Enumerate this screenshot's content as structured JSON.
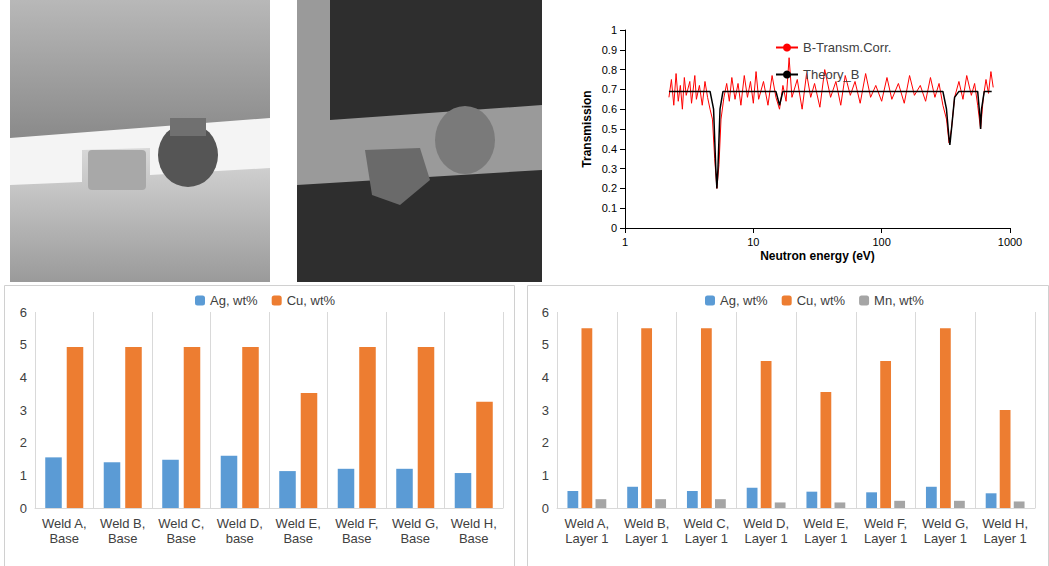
{
  "chart_data": [
    {
      "type": "line",
      "xlabel": "Neutron energy (eV)",
      "ylabel": "Transmission",
      "log": "x",
      "xlim": [
        1,
        1000
      ],
      "xticks": [
        1,
        10,
        100,
        1000
      ],
      "ylim": [
        0,
        1
      ],
      "yticks": [
        0,
        0.1,
        0.2,
        0.3,
        0.4,
        0.5,
        0.6,
        0.7,
        0.8,
        0.9,
        1
      ],
      "grid": false,
      "legend": "upper right",
      "series": [
        {
          "name": "B-Transm.Corr.",
          "color": "#ff0000",
          "line_style": "solid",
          "x": [
            2.2,
            2.3,
            2.4,
            2.5,
            2.6,
            2.7,
            2.8,
            2.9,
            3.0,
            3.2,
            3.3,
            3.5,
            3.6,
            3.8,
            4.0,
            4.2,
            4.4,
            4.6,
            4.8,
            5.0,
            5.2,
            5.4,
            5.6,
            5.9,
            6.2,
            6.5,
            6.8,
            7.2,
            7.6,
            8,
            8.5,
            9,
            9.5,
            10,
            10.5,
            11,
            12,
            13,
            14,
            15,
            16,
            17,
            18,
            19,
            20,
            22,
            24,
            26,
            28,
            30,
            33,
            36,
            40,
            44,
            48,
            52,
            57,
            62,
            68,
            75,
            82,
            90,
            100,
            110,
            120,
            135,
            150,
            165,
            180,
            200,
            220,
            240,
            260,
            280,
            300,
            320,
            335,
            350,
            370,
            400,
            430,
            460,
            500,
            530,
            560,
            590,
            620,
            650,
            680,
            710,
            740
          ],
          "values": [
            0.66,
            0.75,
            0.62,
            0.78,
            0.64,
            0.72,
            0.6,
            0.76,
            0.67,
            0.74,
            0.63,
            0.77,
            0.65,
            0.72,
            0.62,
            0.74,
            0.66,
            0.6,
            0.55,
            0.35,
            0.2,
            0.32,
            0.55,
            0.66,
            0.73,
            0.64,
            0.76,
            0.65,
            0.73,
            0.62,
            0.77,
            0.66,
            0.74,
            0.63,
            0.79,
            0.65,
            0.74,
            0.62,
            0.77,
            0.66,
            0.6,
            0.72,
            0.64,
            0.86,
            0.66,
            0.75,
            0.6,
            0.78,
            0.66,
            0.73,
            0.61,
            0.8,
            0.66,
            0.74,
            0.62,
            0.77,
            0.67,
            0.74,
            0.63,
            0.78,
            0.66,
            0.72,
            0.64,
            0.76,
            0.65,
            0.73,
            0.63,
            0.77,
            0.67,
            0.72,
            0.64,
            0.76,
            0.66,
            0.73,
            0.62,
            0.55,
            0.43,
            0.5,
            0.66,
            0.74,
            0.65,
            0.77,
            0.67,
            0.73,
            0.62,
            0.5,
            0.66,
            0.75,
            0.68,
            0.79,
            0.71
          ]
        },
        {
          "name": "Theory_B",
          "color": "#000000",
          "line_style": "solid",
          "x": [
            2.2,
            4.6,
            4.9,
            5.1,
            5.2,
            5.3,
            5.5,
            5.8,
            15,
            16,
            17,
            300,
            320,
            335,
            340,
            350,
            370,
            400,
            560,
            585,
            590,
            600,
            630,
            720
          ],
          "values": [
            0.69,
            0.69,
            0.6,
            0.3,
            0.2,
            0.3,
            0.6,
            0.69,
            0.69,
            0.62,
            0.69,
            0.69,
            0.6,
            0.45,
            0.42,
            0.5,
            0.66,
            0.69,
            0.69,
            0.55,
            0.5,
            0.6,
            0.69,
            0.69
          ]
        }
      ]
    },
    {
      "type": "bar",
      "categories": [
        "Weld A, Base",
        "Weld B, Base",
        "Weld C, Base",
        "Weld D, base",
        "Weld E, Base",
        "Weld F, Base",
        "Weld G, Base",
        "Weld H, Base"
      ],
      "ylim": [
        0,
        6
      ],
      "yticks": [
        0,
        1,
        2,
        3,
        4,
        5,
        6
      ],
      "grid": true,
      "legend": "upper center",
      "series": [
        {
          "name": "Ag, wt%",
          "color": "#5b9bd5",
          "values": [
            1.55,
            1.4,
            1.48,
            1.6,
            1.13,
            1.2,
            1.2,
            1.07
          ]
        },
        {
          "name": "Cu, wt%",
          "color": "#ed7d31",
          "values": [
            4.93,
            4.93,
            4.93,
            4.93,
            3.52,
            4.93,
            4.93,
            3.25
          ]
        }
      ]
    },
    {
      "type": "bar",
      "categories": [
        "Weld A, Layer 1",
        "Weld B, Layer 1",
        "Weld C, Layer 1",
        "Weld D, Layer 1",
        "Weld E, Layer 1",
        "Weld F, Layer 1",
        "Weld G, Layer 1",
        "Weld H, Layer 1"
      ],
      "ylim": [
        0,
        6
      ],
      "yticks": [
        0,
        1,
        2,
        3,
        4,
        5,
        6
      ],
      "grid": true,
      "legend": "upper center",
      "series": [
        {
          "name": "Ag, wt%",
          "color": "#5b9bd5",
          "values": [
            0.52,
            0.65,
            0.52,
            0.62,
            0.5,
            0.48,
            0.65,
            0.45
          ]
        },
        {
          "name": "Cu, wt%",
          "color": "#ed7d31",
          "values": [
            5.5,
            5.5,
            5.5,
            4.5,
            3.55,
            4.5,
            5.5,
            3.0
          ]
        },
        {
          "name": "Mn, wt%",
          "color": "#a5a5a5",
          "values": [
            0.27,
            0.27,
            0.27,
            0.17,
            0.17,
            0.22,
            0.22,
            0.2
          ]
        }
      ]
    }
  ]
}
